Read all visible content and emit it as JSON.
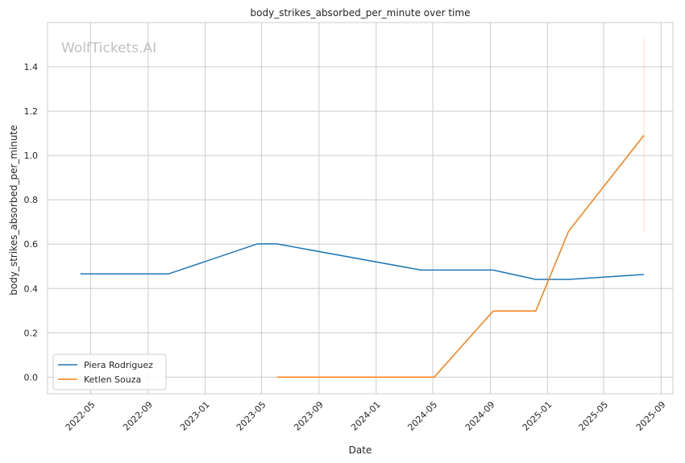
{
  "chart_data": {
    "type": "line",
    "title": "body_strikes_absorbed_per_minute over time",
    "xlabel": "Date",
    "ylabel": "body_strikes_absorbed_per_minute",
    "watermark": "WolfTickets.AI",
    "xlim": [
      "2022-01-29",
      "2025-09-26"
    ],
    "ylim": [
      -0.075,
      1.6
    ],
    "x_ticks": [
      "2022-05",
      "2022-09",
      "2023-01",
      "2023-05",
      "2023-09",
      "2024-01",
      "2024-05",
      "2024-09",
      "2025-01",
      "2025-05",
      "2025-09"
    ],
    "y_ticks": [
      0.0,
      0.2,
      0.4,
      0.6,
      0.8,
      1.0,
      1.2,
      1.4
    ],
    "grid": true,
    "legend_position": "lower-left",
    "series": [
      {
        "name": "Piera Rodriguez",
        "color": "#1f77b4",
        "points": [
          {
            "x": "2022-04-09",
            "y": 0.466
          },
          {
            "x": "2022-10-15",
            "y": 0.466
          },
          {
            "x": "2023-04-22",
            "y": 0.601
          },
          {
            "x": "2023-06-03",
            "y": 0.601
          },
          {
            "x": "2024-04-06",
            "y": 0.483
          },
          {
            "x": "2024-09-07",
            "y": 0.483
          },
          {
            "x": "2024-12-07",
            "y": 0.441
          },
          {
            "x": "2025-02-15",
            "y": 0.441
          },
          {
            "x": "2025-07-26",
            "y": 0.463
          }
        ]
      },
      {
        "name": "Ketlen Souza",
        "color": "#ff7f0e",
        "points": [
          {
            "x": "2023-06-03",
            "y": 0.0
          },
          {
            "x": "2024-05-04",
            "y": 0.0
          },
          {
            "x": "2024-09-07",
            "y": 0.298
          },
          {
            "x": "2024-12-07",
            "y": 0.298
          },
          {
            "x": "2025-02-15",
            "y": 0.658
          },
          {
            "x": "2025-07-26",
            "y": 1.091
          }
        ],
        "error_bar": {
          "x": "2025-07-26",
          "low": 0.655,
          "high": 1.527
        }
      }
    ]
  }
}
